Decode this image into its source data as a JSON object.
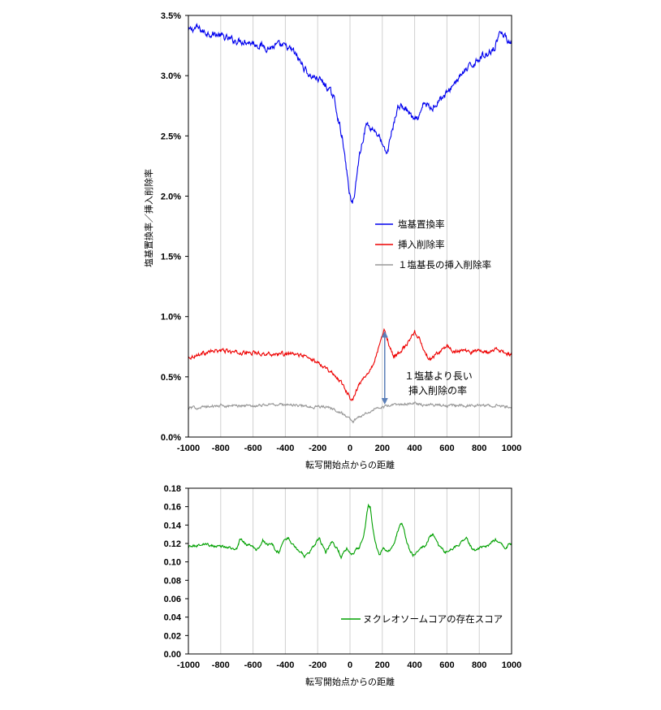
{
  "chart_data": [
    {
      "type": "line",
      "xlabel": "転写開始点からの距離",
      "ylabel": "塩基置換率／挿入削除率",
      "xlim": [
        -1000,
        1000
      ],
      "ylim": [
        0,
        3.5
      ],
      "x_ticks": [
        "-1000",
        "-800",
        "-600",
        "-400",
        "-200",
        "0",
        "200",
        "400",
        "600",
        "800",
        "1000"
      ],
      "y_ticks": [
        "0.0%",
        "0.5%",
        "1.0%",
        "1.5%",
        "2.0%",
        "2.5%",
        "3.0%",
        "3.5%"
      ],
      "grid": "vertical",
      "legend": "middle-right",
      "series": [
        {
          "name": "塩基置換率",
          "color": "#0000ee",
          "points": [
            [
              -1000,
              3.37
            ],
            [
              -950,
              3.4
            ],
            [
              -900,
              3.36
            ],
            [
              -850,
              3.35
            ],
            [
              -800,
              3.33
            ],
            [
              -750,
              3.3
            ],
            [
              -700,
              3.29
            ],
            [
              -650,
              3.29
            ],
            [
              -600,
              3.27
            ],
            [
              -550,
              3.25
            ],
            [
              -500,
              3.23
            ],
            [
              -450,
              3.25
            ],
            [
              -400,
              3.24
            ],
            [
              -350,
              3.2
            ],
            [
              -300,
              3.1
            ],
            [
              -250,
              3.0
            ],
            [
              -200,
              2.98
            ],
            [
              -150,
              2.92
            ],
            [
              -100,
              2.82
            ],
            [
              -50,
              2.5
            ],
            [
              -20,
              2.2
            ],
            [
              0,
              2.0
            ],
            [
              15,
              1.92
            ],
            [
              30,
              2.05
            ],
            [
              60,
              2.35
            ],
            [
              100,
              2.6
            ],
            [
              150,
              2.55
            ],
            [
              180,
              2.5
            ],
            [
              210,
              2.38
            ],
            [
              230,
              2.35
            ],
            [
              260,
              2.55
            ],
            [
              300,
              2.75
            ],
            [
              350,
              2.72
            ],
            [
              400,
              2.62
            ],
            [
              430,
              2.65
            ],
            [
              460,
              2.78
            ],
            [
              500,
              2.72
            ],
            [
              550,
              2.8
            ],
            [
              600,
              2.85
            ],
            [
              650,
              2.95
            ],
            [
              700,
              3.02
            ],
            [
              750,
              3.08
            ],
            [
              800,
              3.15
            ],
            [
              850,
              3.18
            ],
            [
              900,
              3.25
            ],
            [
              930,
              3.38
            ],
            [
              960,
              3.32
            ],
            [
              1000,
              3.28
            ]
          ]
        },
        {
          "name": "挿入削除率",
          "color": "#ee0000",
          "points": [
            [
              -1000,
              0.66
            ],
            [
              -900,
              0.7
            ],
            [
              -800,
              0.72
            ],
            [
              -700,
              0.7
            ],
            [
              -600,
              0.7
            ],
            [
              -500,
              0.69
            ],
            [
              -400,
              0.69
            ],
            [
              -300,
              0.68
            ],
            [
              -250,
              0.65
            ],
            [
              -200,
              0.62
            ],
            [
              -150,
              0.58
            ],
            [
              -100,
              0.52
            ],
            [
              -50,
              0.45
            ],
            [
              -20,
              0.38
            ],
            [
              0,
              0.33
            ],
            [
              20,
              0.32
            ],
            [
              50,
              0.42
            ],
            [
              100,
              0.52
            ],
            [
              150,
              0.62
            ],
            [
              190,
              0.8
            ],
            [
              215,
              0.89
            ],
            [
              240,
              0.78
            ],
            [
              270,
              0.66
            ],
            [
              300,
              0.7
            ],
            [
              350,
              0.76
            ],
            [
              400,
              0.88
            ],
            [
              430,
              0.82
            ],
            [
              460,
              0.7
            ],
            [
              500,
              0.64
            ],
            [
              550,
              0.7
            ],
            [
              600,
              0.76
            ],
            [
              650,
              0.7
            ],
            [
              700,
              0.73
            ],
            [
              750,
              0.7
            ],
            [
              800,
              0.72
            ],
            [
              850,
              0.7
            ],
            [
              900,
              0.73
            ],
            [
              950,
              0.7
            ],
            [
              1000,
              0.68
            ]
          ]
        },
        {
          "name": "１塩基長の挿入削除率",
          "color": "#999999",
          "points": [
            [
              -1000,
              0.24
            ],
            [
              -900,
              0.25
            ],
            [
              -800,
              0.26
            ],
            [
              -700,
              0.26
            ],
            [
              -600,
              0.26
            ],
            [
              -500,
              0.27
            ],
            [
              -400,
              0.27
            ],
            [
              -300,
              0.26
            ],
            [
              -250,
              0.25
            ],
            [
              -200,
              0.25
            ],
            [
              -150,
              0.25
            ],
            [
              -100,
              0.23
            ],
            [
              -50,
              0.2
            ],
            [
              0,
              0.15
            ],
            [
              20,
              0.13
            ],
            [
              50,
              0.16
            ],
            [
              100,
              0.2
            ],
            [
              150,
              0.23
            ],
            [
              200,
              0.25
            ],
            [
              250,
              0.26
            ],
            [
              300,
              0.27
            ],
            [
              350,
              0.27
            ],
            [
              400,
              0.28
            ],
            [
              450,
              0.27
            ],
            [
              500,
              0.27
            ],
            [
              600,
              0.26
            ],
            [
              700,
              0.26
            ],
            [
              800,
              0.26
            ],
            [
              900,
              0.26
            ],
            [
              1000,
              0.25
            ]
          ]
        }
      ],
      "annotation": {
        "lines": [
          "１塩基より長い",
          "挿入削除の率"
        ],
        "arrow_x": 215,
        "arrow_from": 0.88,
        "arrow_to": 0.27,
        "color": "#5b7fb8"
      }
    },
    {
      "type": "line",
      "xlabel": "転写開始点からの距離",
      "ylabel": "",
      "xlim": [
        -1000,
        1000
      ],
      "ylim": [
        0,
        0.18
      ],
      "x_ticks": [
        "-1000",
        "-800",
        "-600",
        "-400",
        "-200",
        "0",
        "200",
        "400",
        "600",
        "800",
        "1000"
      ],
      "y_ticks": [
        "0.00",
        "0.02",
        "0.04",
        "0.06",
        "0.08",
        "0.10",
        "0.12",
        "0.14",
        "0.16",
        "0.18"
      ],
      "grid": "vertical",
      "legend": "bottom-right",
      "series": [
        {
          "name": "ヌクレオソームコアの存在スコア",
          "color": "#00a000",
          "points": [
            [
              -1000,
              0.117
            ],
            [
              -950,
              0.118
            ],
            [
              -900,
              0.12
            ],
            [
              -850,
              0.117
            ],
            [
              -800,
              0.118
            ],
            [
              -750,
              0.115
            ],
            [
              -700,
              0.114
            ],
            [
              -690,
              0.12
            ],
            [
              -680,
              0.126
            ],
            [
              -660,
              0.122
            ],
            [
              -640,
              0.119
            ],
            [
              -600,
              0.117
            ],
            [
              -580,
              0.112
            ],
            [
              -560,
              0.116
            ],
            [
              -540,
              0.124
            ],
            [
              -520,
              0.12
            ],
            [
              -480,
              0.118
            ],
            [
              -460,
              0.112
            ],
            [
              -440,
              0.11
            ],
            [
              -420,
              0.118
            ],
            [
              -400,
              0.124
            ],
            [
              -380,
              0.126
            ],
            [
              -350,
              0.118
            ],
            [
              -320,
              0.112
            ],
            [
              -300,
              0.11
            ],
            [
              -280,
              0.106
            ],
            [
              -250,
              0.11
            ],
            [
              -220,
              0.118
            ],
            [
              -200,
              0.124
            ],
            [
              -190,
              0.126
            ],
            [
              -170,
              0.118
            ],
            [
              -150,
              0.11
            ],
            [
              -130,
              0.116
            ],
            [
              -110,
              0.122
            ],
            [
              -90,
              0.116
            ],
            [
              -70,
              0.112
            ],
            [
              -55,
              0.105
            ],
            [
              -40,
              0.11
            ],
            [
              -20,
              0.114
            ],
            [
              0,
              0.111
            ],
            [
              20,
              0.108
            ],
            [
              40,
              0.114
            ],
            [
              60,
              0.116
            ],
            [
              80,
              0.125
            ],
            [
              95,
              0.14
            ],
            [
              105,
              0.155
            ],
            [
              115,
              0.162
            ],
            [
              125,
              0.16
            ],
            [
              135,
              0.145
            ],
            [
              150,
              0.128
            ],
            [
              165,
              0.115
            ],
            [
              180,
              0.108
            ],
            [
              190,
              0.11
            ],
            [
              210,
              0.115
            ],
            [
              230,
              0.112
            ],
            [
              250,
              0.113
            ],
            [
              270,
              0.118
            ],
            [
              290,
              0.13
            ],
            [
              310,
              0.14
            ],
            [
              320,
              0.142
            ],
            [
              335,
              0.135
            ],
            [
              350,
              0.122
            ],
            [
              370,
              0.112
            ],
            [
              390,
              0.108
            ],
            [
              410,
              0.11
            ],
            [
              440,
              0.115
            ],
            [
              470,
              0.118
            ],
            [
              490,
              0.126
            ],
            [
              510,
              0.13
            ],
            [
              530,
              0.126
            ],
            [
              550,
              0.118
            ],
            [
              570,
              0.114
            ],
            [
              590,
              0.11
            ],
            [
              610,
              0.113
            ],
            [
              640,
              0.115
            ],
            [
              670,
              0.118
            ],
            [
              700,
              0.124
            ],
            [
              720,
              0.126
            ],
            [
              740,
              0.12
            ],
            [
              760,
              0.114
            ],
            [
              780,
              0.112
            ],
            [
              800,
              0.115
            ],
            [
              830,
              0.116
            ],
            [
              860,
              0.118
            ],
            [
              880,
              0.122
            ],
            [
              900,
              0.124
            ],
            [
              920,
              0.122
            ],
            [
              940,
              0.12
            ],
            [
              960,
              0.116
            ],
            [
              980,
              0.118
            ],
            [
              1000,
              0.118
            ]
          ]
        }
      ]
    }
  ]
}
